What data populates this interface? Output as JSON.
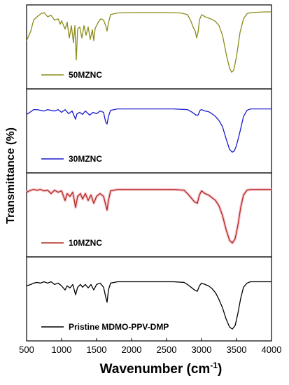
{
  "chart_data": {
    "type": "line",
    "xlabel": "Wavenumber (cm",
    "xlabel_sup": "-1",
    "xlabel_close": ")",
    "ylabel": "Transmittance (%)",
    "xlim": [
      500,
      4000
    ],
    "x_ticks": [
      500,
      1000,
      1500,
      2000,
      2500,
      3000,
      3500,
      4000
    ],
    "panels": [
      {
        "name": "50MZNC",
        "color": "#8b8b1a",
        "points": [
          [
            500,
            0.58
          ],
          [
            560,
            0.72
          ],
          [
            600,
            0.88
          ],
          [
            650,
            0.93
          ],
          [
            700,
            0.97
          ],
          [
            750,
            0.99
          ],
          [
            800,
            0.93
          ],
          [
            850,
            0.95
          ],
          [
            900,
            0.88
          ],
          [
            950,
            0.9
          ],
          [
            980,
            0.82
          ],
          [
            1000,
            0.87
          ],
          [
            1050,
            0.75
          ],
          [
            1080,
            0.85
          ],
          [
            1110,
            0.62
          ],
          [
            1140,
            0.8
          ],
          [
            1170,
            0.55
          ],
          [
            1190,
            0.8
          ],
          [
            1210,
            0.3
          ],
          [
            1230,
            0.75
          ],
          [
            1260,
            0.78
          ],
          [
            1290,
            0.62
          ],
          [
            1320,
            0.8
          ],
          [
            1350,
            0.66
          ],
          [
            1380,
            0.78
          ],
          [
            1410,
            0.6
          ],
          [
            1440,
            0.74
          ],
          [
            1460,
            0.58
          ],
          [
            1480,
            0.76
          ],
          [
            1500,
            0.8
          ],
          [
            1530,
            0.86
          ],
          [
            1560,
            0.9
          ],
          [
            1600,
            0.88
          ],
          [
            1630,
            0.8
          ],
          [
            1650,
            0.72
          ],
          [
            1670,
            0.84
          ],
          [
            1700,
            0.96
          ],
          [
            1800,
            0.985
          ],
          [
            2000,
            0.99
          ],
          [
            2200,
            0.99
          ],
          [
            2500,
            0.99
          ],
          [
            2700,
            0.985
          ],
          [
            2800,
            0.96
          ],
          [
            2850,
            0.86
          ],
          [
            2880,
            0.78
          ],
          [
            2910,
            0.72
          ],
          [
            2930,
            0.62
          ],
          [
            2950,
            0.7
          ],
          [
            2970,
            0.88
          ],
          [
            3000,
            0.96
          ],
          [
            3050,
            0.93
          ],
          [
            3100,
            0.91
          ],
          [
            3150,
            0.89
          ],
          [
            3200,
            0.86
          ],
          [
            3250,
            0.8
          ],
          [
            3300,
            0.66
          ],
          [
            3350,
            0.4
          ],
          [
            3400,
            0.18
          ],
          [
            3430,
            0.12
          ],
          [
            3460,
            0.15
          ],
          [
            3500,
            0.35
          ],
          [
            3550,
            0.7
          ],
          [
            3600,
            0.9
          ],
          [
            3650,
            0.975
          ],
          [
            3700,
            0.99
          ],
          [
            3800,
            0.995
          ],
          [
            3900,
            1.0
          ],
          [
            4000,
            1.0
          ]
        ]
      },
      {
        "name": "30MZNC",
        "color": "#1a1acc",
        "points": [
          [
            500,
            0.73
          ],
          [
            560,
            0.77
          ],
          [
            600,
            0.8
          ],
          [
            650,
            0.8
          ],
          [
            700,
            0.79
          ],
          [
            750,
            0.78
          ],
          [
            800,
            0.8
          ],
          [
            850,
            0.79
          ],
          [
            900,
            0.78
          ],
          [
            950,
            0.8
          ],
          [
            1000,
            0.76
          ],
          [
            1050,
            0.8
          ],
          [
            1100,
            0.74
          ],
          [
            1150,
            0.78
          ],
          [
            1200,
            0.66
          ],
          [
            1220,
            0.74
          ],
          [
            1260,
            0.76
          ],
          [
            1300,
            0.73
          ],
          [
            1340,
            0.78
          ],
          [
            1400,
            0.72
          ],
          [
            1450,
            0.76
          ],
          [
            1500,
            0.74
          ],
          [
            1550,
            0.78
          ],
          [
            1600,
            0.76
          ],
          [
            1630,
            0.62
          ],
          [
            1650,
            0.59
          ],
          [
            1670,
            0.7
          ],
          [
            1700,
            0.79
          ],
          [
            1800,
            0.81
          ],
          [
            2000,
            0.81
          ],
          [
            2300,
            0.81
          ],
          [
            2600,
            0.81
          ],
          [
            2800,
            0.8
          ],
          [
            2870,
            0.76
          ],
          [
            2920,
            0.72
          ],
          [
            2950,
            0.72
          ],
          [
            2980,
            0.79
          ],
          [
            3000,
            0.8
          ],
          [
            3050,
            0.78
          ],
          [
            3100,
            0.77
          ],
          [
            3150,
            0.74
          ],
          [
            3200,
            0.7
          ],
          [
            3250,
            0.64
          ],
          [
            3300,
            0.55
          ],
          [
            3350,
            0.38
          ],
          [
            3400,
            0.22
          ],
          [
            3440,
            0.18
          ],
          [
            3470,
            0.2
          ],
          [
            3500,
            0.28
          ],
          [
            3550,
            0.48
          ],
          [
            3600,
            0.7
          ],
          [
            3650,
            0.79
          ],
          [
            3700,
            0.81
          ],
          [
            3800,
            0.81
          ],
          [
            3900,
            0.81
          ],
          [
            4000,
            0.81
          ]
        ]
      },
      {
        "name": "10MZNC",
        "color": "#b22a1f",
        "points": [
          [
            500,
            0.82
          ],
          [
            560,
            0.85
          ],
          [
            600,
            0.86
          ],
          [
            650,
            0.85
          ],
          [
            700,
            0.86
          ],
          [
            750,
            0.84
          ],
          [
            800,
            0.85
          ],
          [
            850,
            0.8
          ],
          [
            900,
            0.85
          ],
          [
            950,
            0.82
          ],
          [
            1000,
            0.84
          ],
          [
            1050,
            0.7
          ],
          [
            1080,
            0.8
          ],
          [
            1120,
            0.76
          ],
          [
            1160,
            0.82
          ],
          [
            1200,
            0.6
          ],
          [
            1230,
            0.76
          ],
          [
            1270,
            0.8
          ],
          [
            1300,
            0.72
          ],
          [
            1340,
            0.8
          ],
          [
            1380,
            0.7
          ],
          [
            1420,
            0.78
          ],
          [
            1460,
            0.66
          ],
          [
            1500,
            0.76
          ],
          [
            1550,
            0.8
          ],
          [
            1600,
            0.76
          ],
          [
            1630,
            0.64
          ],
          [
            1650,
            0.56
          ],
          [
            1670,
            0.7
          ],
          [
            1700,
            0.84
          ],
          [
            1800,
            0.86
          ],
          [
            2000,
            0.86
          ],
          [
            2300,
            0.86
          ],
          [
            2600,
            0.86
          ],
          [
            2750,
            0.85
          ],
          [
            2800,
            0.8
          ],
          [
            2850,
            0.74
          ],
          [
            2900,
            0.68
          ],
          [
            2940,
            0.66
          ],
          [
            2970,
            0.78
          ],
          [
            3000,
            0.84
          ],
          [
            3050,
            0.8
          ],
          [
            3100,
            0.78
          ],
          [
            3150,
            0.74
          ],
          [
            3200,
            0.7
          ],
          [
            3250,
            0.62
          ],
          [
            3300,
            0.48
          ],
          [
            3350,
            0.28
          ],
          [
            3400,
            0.12
          ],
          [
            3440,
            0.08
          ],
          [
            3480,
            0.14
          ],
          [
            3520,
            0.34
          ],
          [
            3560,
            0.6
          ],
          [
            3600,
            0.78
          ],
          [
            3650,
            0.85
          ],
          [
            3700,
            0.86
          ],
          [
            3800,
            0.86
          ],
          [
            3900,
            0.86
          ],
          [
            4000,
            0.86
          ]
        ]
      },
      {
        "name": "Pristine MDMO-PPV-DMP",
        "color": "#000000",
        "points": [
          [
            500,
            0.68
          ],
          [
            560,
            0.7
          ],
          [
            600,
            0.72
          ],
          [
            650,
            0.73
          ],
          [
            700,
            0.72
          ],
          [
            750,
            0.74
          ],
          [
            800,
            0.72
          ],
          [
            850,
            0.74
          ],
          [
            900,
            0.7
          ],
          [
            950,
            0.72
          ],
          [
            1000,
            0.68
          ],
          [
            1050,
            0.62
          ],
          [
            1080,
            0.68
          ],
          [
            1120,
            0.65
          ],
          [
            1160,
            0.7
          ],
          [
            1200,
            0.55
          ],
          [
            1230,
            0.66
          ],
          [
            1270,
            0.7
          ],
          [
            1300,
            0.66
          ],
          [
            1340,
            0.7
          ],
          [
            1380,
            0.65
          ],
          [
            1420,
            0.7
          ],
          [
            1460,
            0.62
          ],
          [
            1500,
            0.7
          ],
          [
            1550,
            0.72
          ],
          [
            1600,
            0.66
          ],
          [
            1630,
            0.52
          ],
          [
            1650,
            0.44
          ],
          [
            1670,
            0.62
          ],
          [
            1700,
            0.72
          ],
          [
            1800,
            0.74
          ],
          [
            2000,
            0.74
          ],
          [
            2300,
            0.74
          ],
          [
            2600,
            0.74
          ],
          [
            2750,
            0.73
          ],
          [
            2800,
            0.7
          ],
          [
            2850,
            0.66
          ],
          [
            2900,
            0.62
          ],
          [
            2940,
            0.6
          ],
          [
            2970,
            0.68
          ],
          [
            3000,
            0.72
          ],
          [
            3050,
            0.7
          ],
          [
            3100,
            0.68
          ],
          [
            3150,
            0.64
          ],
          [
            3200,
            0.58
          ],
          [
            3250,
            0.48
          ],
          [
            3300,
            0.36
          ],
          [
            3350,
            0.2
          ],
          [
            3400,
            0.08
          ],
          [
            3440,
            0.05
          ],
          [
            3480,
            0.1
          ],
          [
            3520,
            0.28
          ],
          [
            3560,
            0.5
          ],
          [
            3600,
            0.66
          ],
          [
            3650,
            0.72
          ],
          [
            3700,
            0.74
          ],
          [
            3800,
            0.74
          ],
          [
            3900,
            0.74
          ],
          [
            4000,
            0.74
          ]
        ]
      }
    ],
    "legend_placement": "bottom-left of each panel",
    "grid": false
  }
}
